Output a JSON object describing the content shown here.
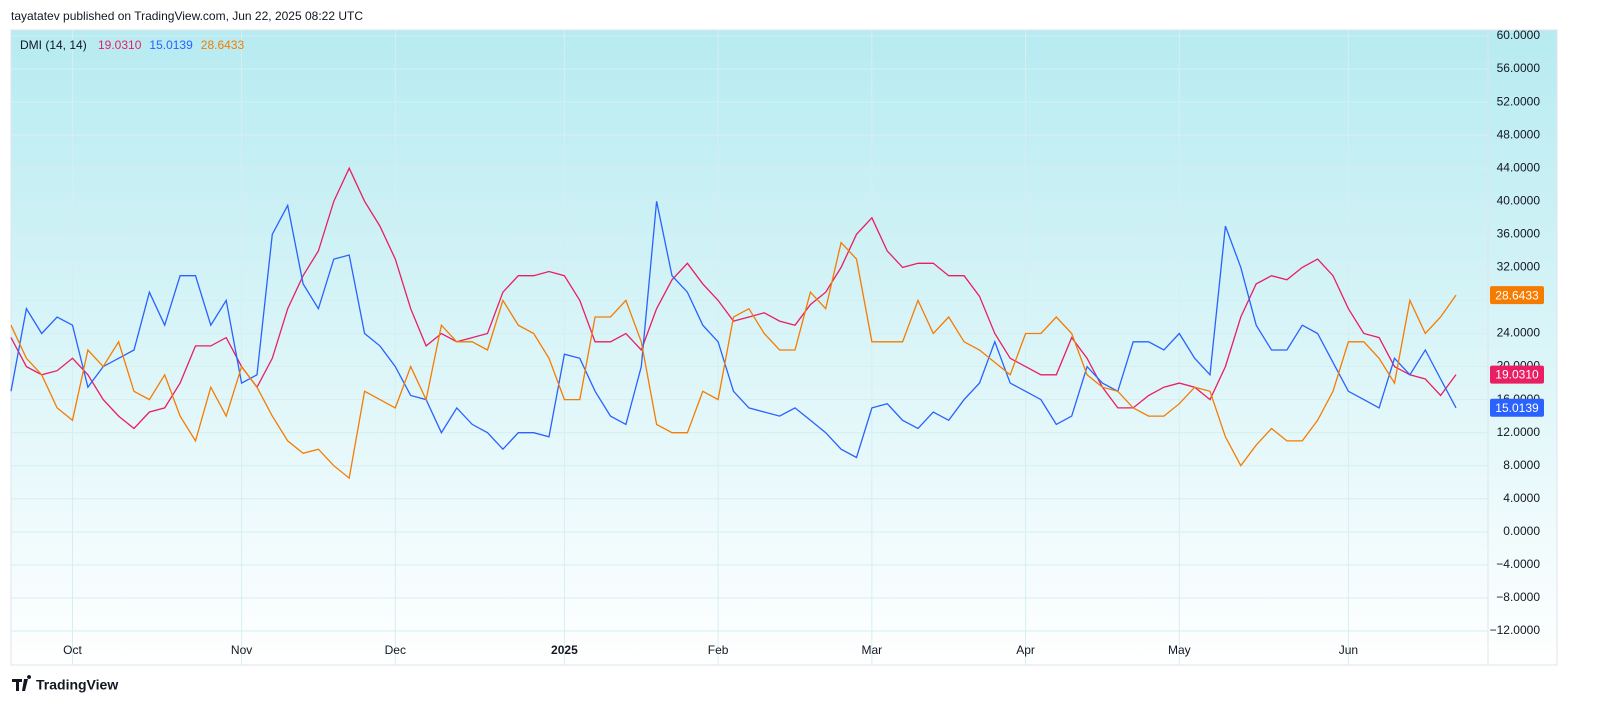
{
  "header": {
    "title": "tayatatev published on TradingView.com, Jun 22, 2025 08:22 UTC"
  },
  "footer": {
    "brand": "TradingView"
  },
  "chart_data": {
    "type": "line",
    "title": "DMI (14, 14)",
    "categories": [
      null,
      null,
      null,
      null,
      "Oct",
      null,
      null,
      null,
      null,
      null,
      null,
      null,
      null,
      null,
      null,
      "Nov",
      null,
      null,
      null,
      null,
      null,
      null,
      null,
      null,
      null,
      "Dec",
      null,
      null,
      null,
      null,
      null,
      null,
      null,
      null,
      null,
      null,
      "2025",
      null,
      null,
      null,
      null,
      null,
      null,
      null,
      null,
      null,
      "Feb",
      null,
      null,
      null,
      null,
      null,
      null,
      null,
      null,
      null,
      "Mar",
      null,
      null,
      null,
      null,
      null,
      null,
      null,
      null,
      null,
      "Apr",
      null,
      null,
      null,
      null,
      null,
      null,
      null,
      null,
      null,
      "May",
      null,
      null,
      null,
      null,
      null,
      null,
      null,
      null,
      null,
      null,
      "Jun",
      null,
      null,
      null,
      null,
      null,
      null,
      null
    ],
    "series": [
      {
        "color": "#e91e63",
        "values": [
          23.5,
          20,
          19,
          19.5,
          21,
          19,
          16,
          14,
          12.5,
          14.5,
          15,
          18,
          22.5,
          22.5,
          23.5,
          20,
          17.5,
          21,
          27,
          31,
          34,
          40,
          44,
          40,
          37,
          33,
          27,
          22.5,
          24,
          23,
          23.5,
          24,
          29,
          31,
          31,
          31.5,
          31,
          28,
          23,
          23,
          24,
          22,
          27,
          30.5,
          32.5,
          30,
          28,
          25.5,
          26,
          26.5,
          25.5,
          25,
          27.5,
          29,
          32,
          36,
          38,
          34,
          32,
          32.5,
          32.5,
          31,
          31,
          28.5,
          24,
          21,
          20,
          19,
          19,
          23.5,
          21,
          17.5,
          15,
          15,
          16.5,
          17.5,
          18,
          17.5,
          16,
          20,
          26,
          30,
          31,
          30.5,
          32,
          33,
          31,
          27,
          24,
          23.5,
          20,
          19,
          18.5,
          16.5,
          19.031
        ],
        "value_labels": [
          null,
          null,
          null,
          null,
          null,
          null,
          null,
          null,
          null,
          null,
          null,
          null,
          null,
          null,
          null,
          null,
          null,
          null,
          null,
          null,
          null,
          null,
          null,
          null,
          null,
          null,
          null,
          null,
          null,
          null,
          null,
          null,
          null,
          null,
          null,
          null,
          null,
          null,
          null,
          null,
          null,
          null,
          null,
          null,
          null,
          null,
          null,
          null,
          null,
          null,
          null,
          null,
          null,
          null,
          null,
          null,
          null,
          null,
          null,
          null,
          null,
          null,
          null,
          null,
          null,
          null,
          null,
          null,
          null,
          null,
          null,
          null,
          null,
          null,
          null,
          null,
          null,
          null,
          null,
          null,
          null,
          null,
          null,
          null,
          null,
          null,
          null,
          null,
          null,
          null,
          null,
          null,
          null,
          null,
          "19.0310"
        ]
      },
      {
        "color": "#2962ff",
        "values": [
          17,
          27,
          24,
          26,
          25,
          17.5,
          20,
          21,
          22,
          29,
          25,
          31,
          31,
          25,
          28,
          18,
          19,
          36,
          39.5,
          30,
          27,
          33,
          33.5,
          24,
          22.5,
          20,
          16.5,
          16,
          12,
          15,
          13,
          12,
          10,
          12,
          12,
          11.5,
          21.5,
          21,
          17,
          14,
          13,
          20,
          40,
          31,
          29,
          25,
          23,
          17,
          15,
          14.5,
          14,
          15,
          13.5,
          12,
          10,
          9,
          15,
          15.5,
          13.5,
          12.5,
          14.5,
          13.5,
          16,
          18,
          23,
          18,
          17,
          16,
          13,
          14,
          20,
          18,
          17,
          23,
          23,
          22,
          24,
          21,
          19,
          37,
          32,
          25,
          22,
          22,
          25,
          24,
          20.5,
          17,
          16,
          15,
          21,
          19,
          22,
          18.5,
          15.0139
        ],
        "value_labels": [
          null,
          null,
          null,
          null,
          null,
          null,
          null,
          null,
          null,
          null,
          null,
          null,
          null,
          null,
          null,
          null,
          null,
          null,
          null,
          null,
          null,
          null,
          null,
          null,
          null,
          null,
          null,
          null,
          null,
          null,
          null,
          null,
          null,
          null,
          null,
          null,
          null,
          null,
          null,
          null,
          null,
          null,
          null,
          null,
          null,
          null,
          null,
          null,
          null,
          null,
          null,
          null,
          null,
          null,
          null,
          null,
          null,
          null,
          null,
          null,
          null,
          null,
          null,
          null,
          null,
          null,
          null,
          null,
          null,
          null,
          null,
          null,
          null,
          null,
          null,
          null,
          null,
          null,
          null,
          null,
          null,
          null,
          null,
          null,
          null,
          null,
          null,
          null,
          null,
          null,
          null,
          null,
          null,
          null,
          "15.0139"
        ]
      },
      {
        "color": "#f57c00",
        "values": [
          25,
          21,
          19,
          15,
          13.5,
          22,
          20,
          23,
          17,
          16,
          19,
          14,
          11,
          17.5,
          14,
          20,
          17.5,
          14,
          11,
          9.5,
          10,
          8,
          6.5,
          17,
          16,
          15,
          20,
          16,
          25,
          23,
          23,
          22,
          28,
          25,
          24,
          21,
          16,
          16,
          26,
          26,
          28,
          23,
          13,
          12,
          12,
          17,
          16,
          26,
          27,
          24,
          22,
          22,
          29,
          27,
          35,
          33,
          23,
          23,
          23,
          28,
          24,
          26,
          23,
          22,
          20.5,
          19,
          24,
          24,
          26,
          24,
          19,
          17.5,
          17,
          15,
          14,
          14,
          15.5,
          17.5,
          17,
          11.5,
          8,
          10.5,
          12.5,
          11,
          11,
          13.5,
          17,
          23,
          23,
          21,
          18,
          28,
          24,
          26,
          28.6433
        ],
        "value_labels": [
          null,
          null,
          null,
          null,
          null,
          null,
          null,
          null,
          null,
          null,
          null,
          null,
          null,
          null,
          null,
          null,
          null,
          null,
          null,
          null,
          null,
          null,
          null,
          null,
          null,
          null,
          null,
          null,
          null,
          null,
          null,
          null,
          null,
          null,
          null,
          null,
          null,
          null,
          null,
          null,
          null,
          null,
          null,
          null,
          null,
          null,
          null,
          null,
          null,
          null,
          null,
          null,
          null,
          null,
          null,
          null,
          null,
          null,
          null,
          null,
          null,
          null,
          null,
          null,
          null,
          null,
          null,
          null,
          null,
          null,
          null,
          null,
          null,
          null,
          null,
          null,
          null,
          null,
          null,
          null,
          null,
          null,
          null,
          null,
          null,
          null,
          null,
          null,
          null,
          null,
          null,
          null,
          null,
          null,
          "28.6433"
        ]
      }
    ],
    "ylim": [
      -12,
      60
    ],
    "yticks": [
      {
        "value": 60,
        "label": "60.0000"
      },
      {
        "value": 56,
        "label": "56.0000"
      },
      {
        "value": 52,
        "label": "52.0000"
      },
      {
        "value": 48,
        "label": "48.0000"
      },
      {
        "value": 44,
        "label": "44.0000"
      },
      {
        "value": 40,
        "label": "40.0000"
      },
      {
        "value": 36,
        "label": "36.0000"
      },
      {
        "value": 32,
        "label": "32.0000"
      },
      {
        "value": 28,
        "label": "28.0000"
      },
      {
        "value": 24,
        "label": "24.0000"
      },
      {
        "value": 20,
        "label": "20.0000"
      },
      {
        "value": 16,
        "label": "16.0000"
      },
      {
        "value": 12,
        "label": "12.0000"
      },
      {
        "value": 8,
        "label": "8.0000"
      },
      {
        "value": 4,
        "label": "4.0000"
      },
      {
        "value": 0,
        "label": "0.0000"
      },
      {
        "value": -4,
        "label": "−4.0000"
      },
      {
        "value": -8,
        "label": "−8.0000"
      },
      {
        "value": -12,
        "label": "−12.0000"
      }
    ],
    "grid": true
  }
}
